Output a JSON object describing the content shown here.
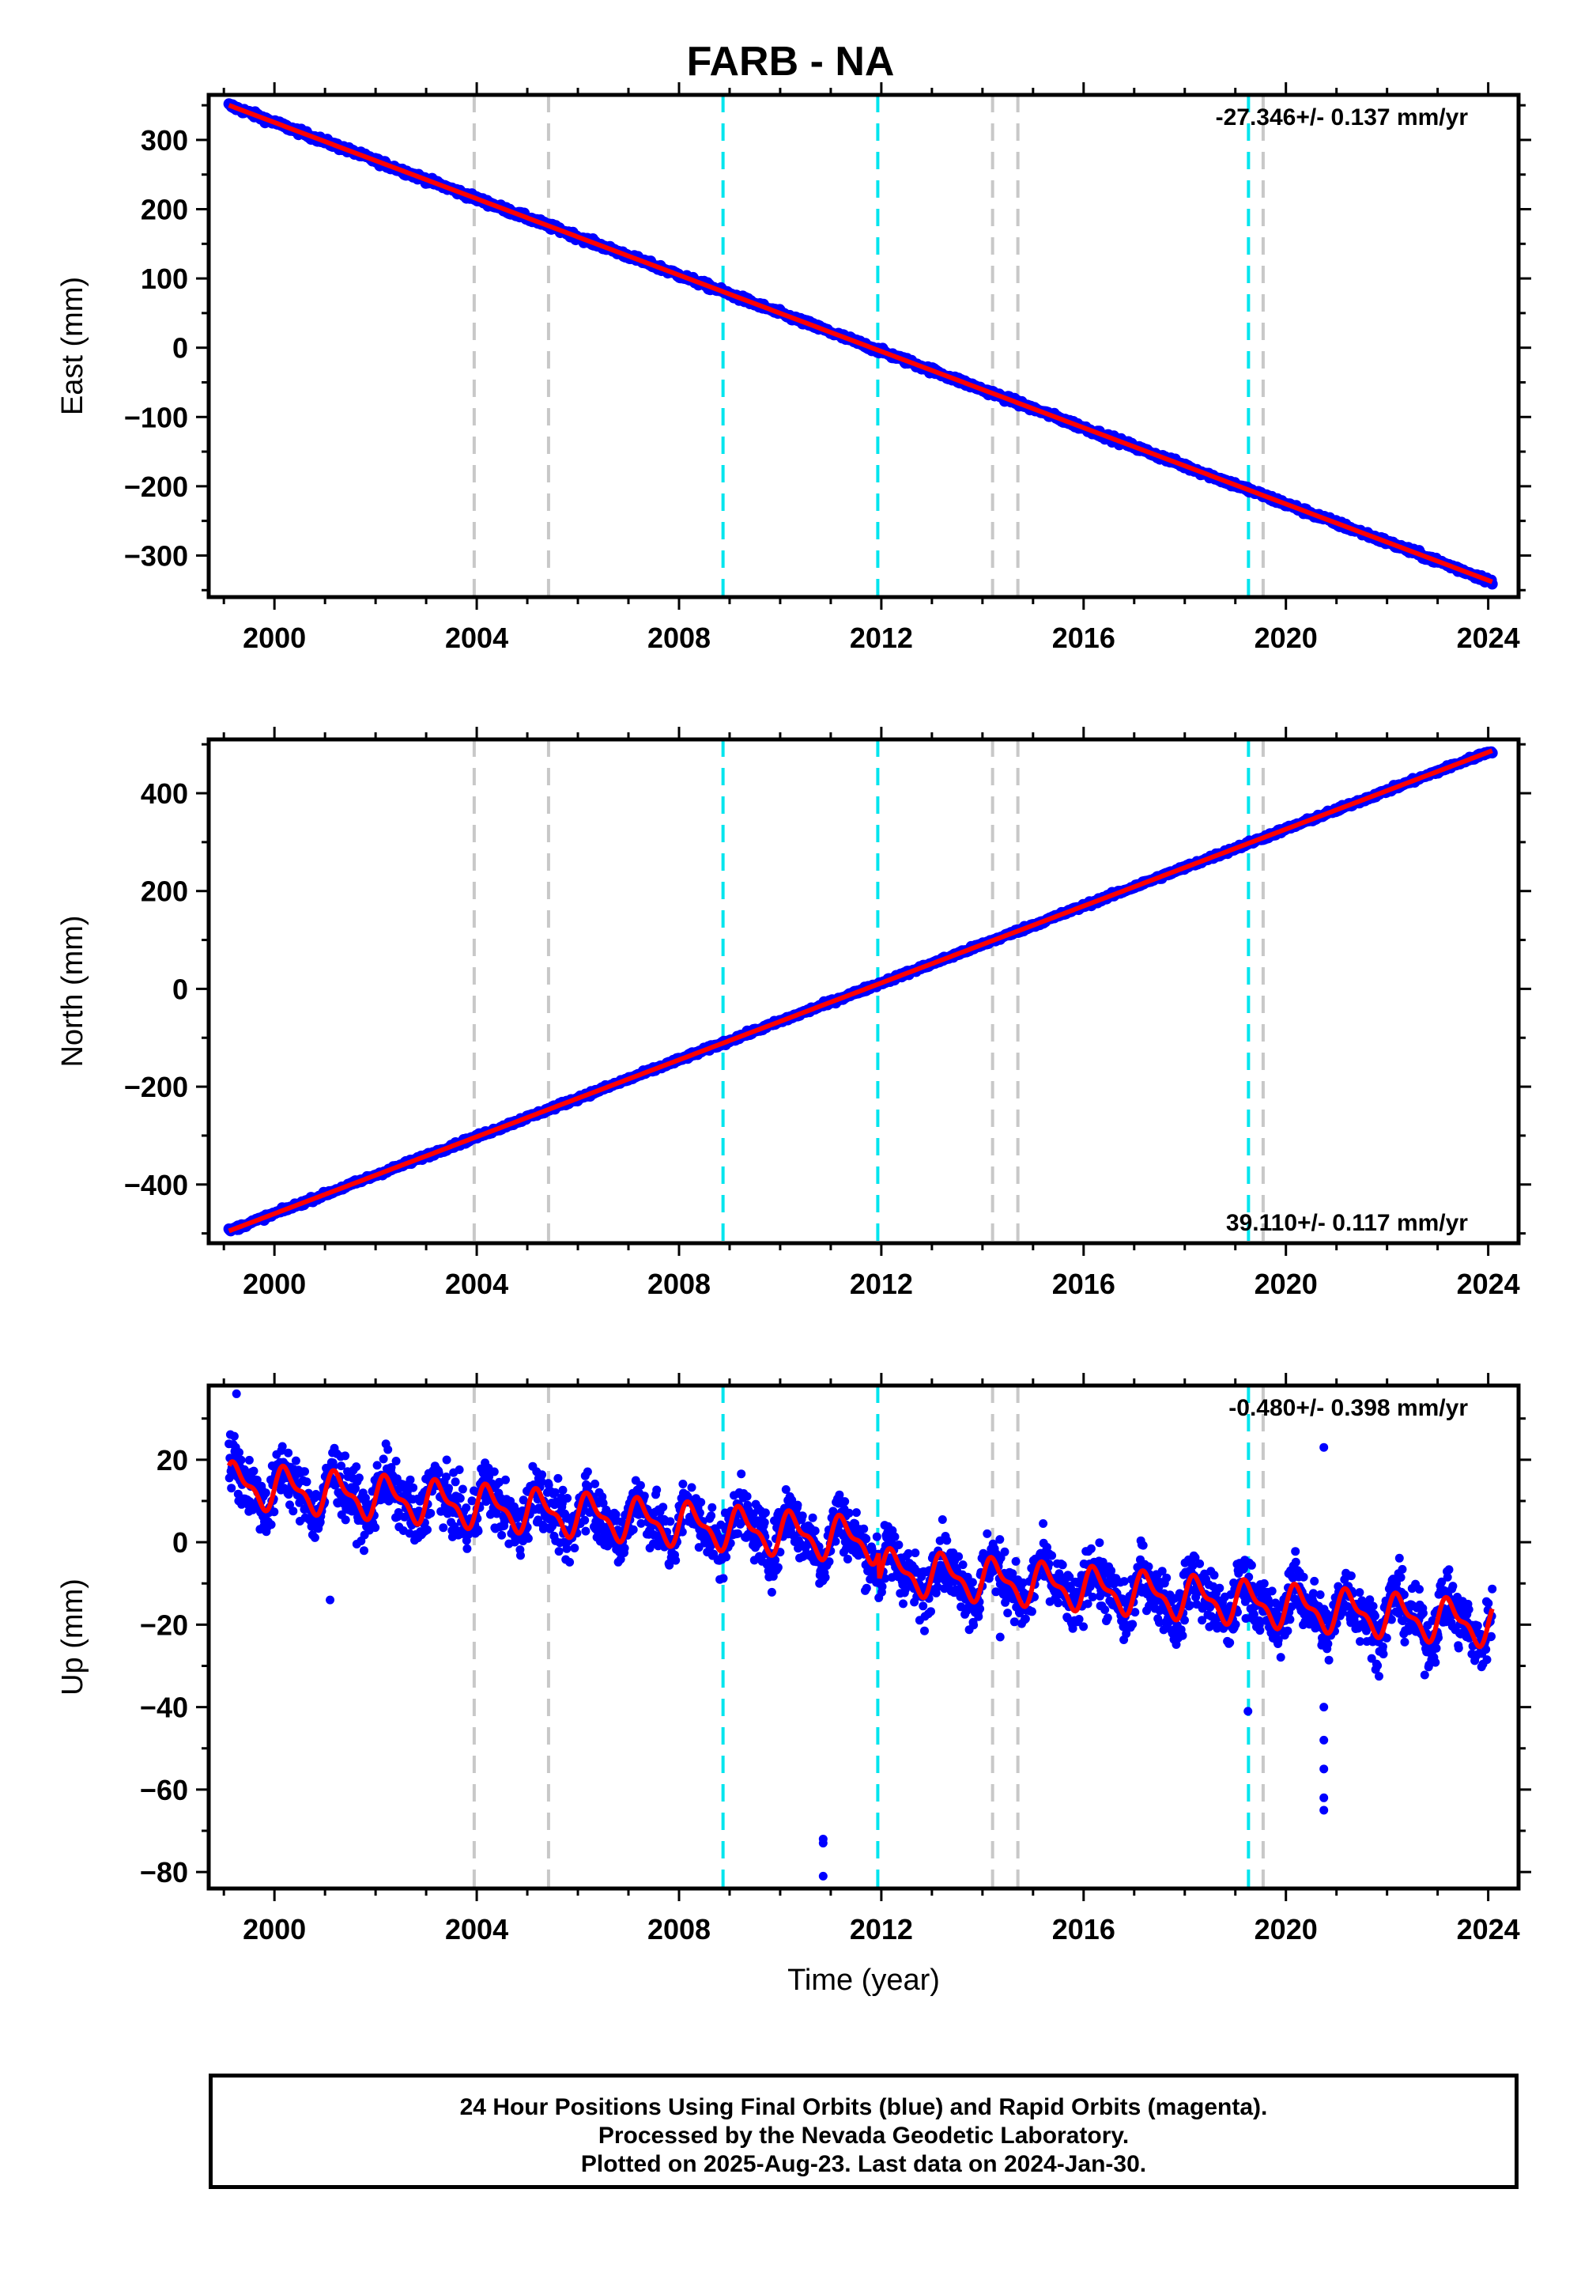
{
  "title": "FARB - NA",
  "footer": {
    "line1": "24 Hour Positions Using Final Orbits (blue) and Rapid Orbits (magenta).",
    "line2": "Processed by the Nevada Geodetic Laboratory.",
    "line3": "Plotted on 2025-Aug-23. Last data on 2024-Jan-30."
  },
  "colors": {
    "data": "#0000ff",
    "model": "#ff0000",
    "equipment_change": "#c8c8c8",
    "earthquake": "#00e5ee"
  },
  "chart_data": [
    {
      "type": "scatter",
      "panel": "east",
      "ylabel": "East (mm)",
      "xlabel": "",
      "xlim": [
        1998.7,
        2024.6
      ],
      "ylim": [
        -360,
        365
      ],
      "x_ticks": [
        2000,
        2004,
        2008,
        2012,
        2016,
        2020,
        2024
      ],
      "y_ticks": [
        300,
        200,
        100,
        0,
        -100,
        -200,
        -300
      ],
      "y_tick_labels": [
        "300",
        "200",
        "100",
        "0",
        "−100",
        "−200",
        "−300"
      ],
      "rate_text": "-27.346+/- 0.137 mm/yr",
      "rate_position": "top-right",
      "trend": {
        "start_year": 1999.1,
        "end_year": 2024.08,
        "start_value": 350,
        "end_value": -338
      },
      "scatter_noise_mm": 3,
      "seasonal": null
    },
    {
      "type": "scatter",
      "panel": "north",
      "ylabel": "North (mm)",
      "xlabel": "",
      "xlim": [
        1998.7,
        2024.6
      ],
      "ylim": [
        -520,
        510
      ],
      "x_ticks": [
        2000,
        2004,
        2008,
        2012,
        2016,
        2020,
        2024
      ],
      "y_ticks": [
        400,
        200,
        0,
        -200,
        -400
      ],
      "y_tick_labels": [
        "400",
        "200",
        "0",
        "−200",
        "−400"
      ],
      "rate_text": "39.110+/- 0.117 mm/yr",
      "rate_position": "bottom-right",
      "trend": {
        "start_year": 1999.1,
        "end_year": 2024.08,
        "start_value": -495,
        "end_value": 487
      },
      "scatter_noise_mm": 3,
      "seasonal": null
    },
    {
      "type": "scatter",
      "panel": "up",
      "ylabel": "Up (mm)",
      "xlabel": "Time (year)",
      "xlim": [
        1998.7,
        2024.6
      ],
      "ylim": [
        -84,
        38
      ],
      "x_ticks": [
        2000,
        2004,
        2008,
        2012,
        2016,
        2020,
        2024
      ],
      "y_ticks": [
        20,
        0,
        -20,
        -40,
        -60,
        -80
      ],
      "y_tick_labels": [
        "20",
        "0",
        "−20",
        "−40",
        "−60",
        "−80"
      ],
      "rate_text": "-0.480+/- 0.398 mm/yr",
      "rate_position": "top-right",
      "trend": {
        "start_year": 1999.1,
        "end_year": 2024.08,
        "start_value": 14,
        "end_value": -13
      },
      "offset_at": 2011.95,
      "offset_mm": -7,
      "scatter_noise_mm": 5,
      "seasonal": {
        "amplitude_mm": 5
      },
      "outliers": [
        {
          "x": 1999.25,
          "y": 36
        },
        {
          "x": 2010.85,
          "y": -72
        },
        {
          "x": 2010.85,
          "y": -73
        },
        {
          "x": 2010.85,
          "y": -81
        },
        {
          "x": 2020.75,
          "y": 23
        },
        {
          "x": 2020.75,
          "y": -40
        },
        {
          "x": 2020.75,
          "y": -48
        },
        {
          "x": 2020.75,
          "y": -55
        },
        {
          "x": 2020.75,
          "y": -62
        },
        {
          "x": 2020.75,
          "y": -65
        },
        {
          "x": 2019.25,
          "y": -41
        },
        {
          "x": 2001.1,
          "y": -14
        },
        {
          "x": 2014.35,
          "y": -23
        }
      ]
    }
  ],
  "events": {
    "equipment_change": [
      2003.95,
      2005.42,
      2014.2,
      2014.7,
      2019.55
    ],
    "earthquake": [
      2008.87,
      2011.93,
      2019.26
    ]
  }
}
